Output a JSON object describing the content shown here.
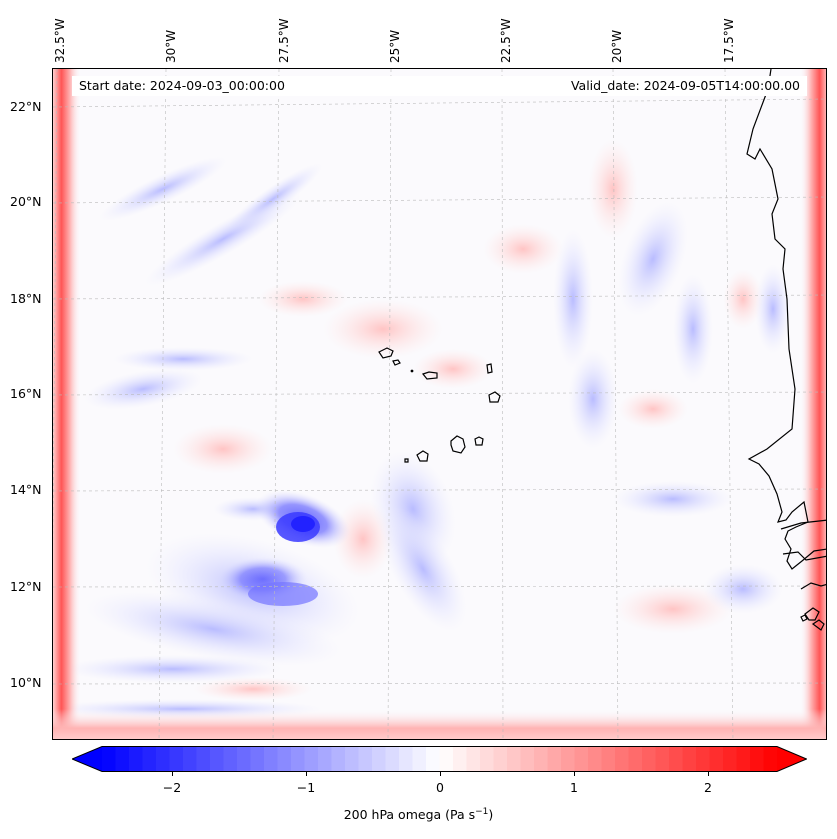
{
  "map": {
    "longitude_labels": [
      "32.5°W",
      "30°W",
      "27.5°W",
      "25°W",
      "22.5°W",
      "20°W",
      "17.5°W"
    ],
    "latitude_labels": [
      "22°N",
      "20°N",
      "18°N",
      "16°N",
      "14°N",
      "12°N",
      "10°N"
    ],
    "start_date": "Start date: 2024-09-03_00:00:00",
    "valid_date": "Valid_date: 2024-09-05T14:00:00.00",
    "field": "200 hPa omega",
    "colors": {
      "negative": "#0000ff",
      "zero": "#ffffff",
      "positive": "#ff0000",
      "coastline": "#000000"
    }
  },
  "colorbar": {
    "ticks": [
      "−2",
      "−1",
      "0",
      "1",
      "2"
    ],
    "range": [
      -2.6,
      2.6
    ],
    "label_main": "200 hPa omega (Pa s",
    "label_exp": "−1",
    "label_close": ")"
  }
}
